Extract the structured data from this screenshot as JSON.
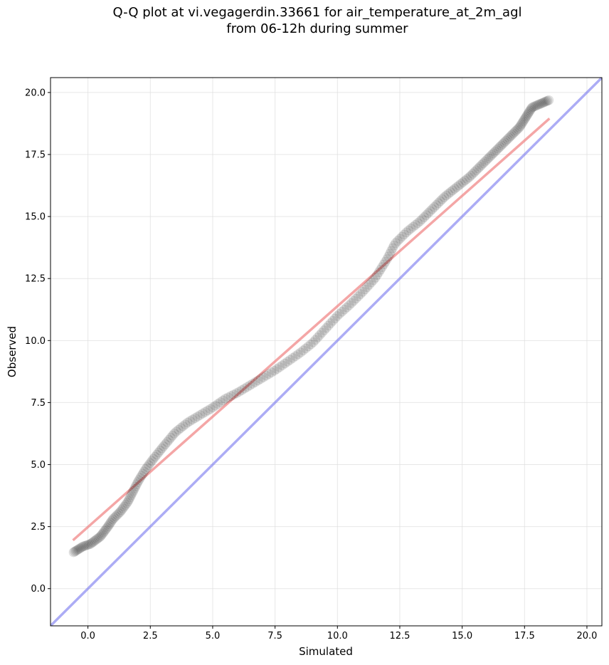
{
  "chart_data": {
    "type": "scatter",
    "title_line1": "Q-Q plot at vi.vegagerdin.33661 for air_temperature_at_2m_agl",
    "title_line2": "from 06-12h during summer",
    "xlabel": "Simulated",
    "ylabel": "Observed",
    "xlim": [
      -1.5,
      20.6
    ],
    "ylim": [
      -1.5,
      20.6
    ],
    "xticks": [
      "0.0",
      "2.5",
      "5.0",
      "7.5",
      "10.0",
      "12.5",
      "15.0",
      "17.5",
      "20.0"
    ],
    "yticks": [
      "0.0",
      "2.5",
      "5.0",
      "7.5",
      "10.0",
      "12.5",
      "15.0",
      "17.5",
      "20.0"
    ],
    "grid": true,
    "colors": {
      "points": "#000000",
      "fit_line": "#f08080",
      "identity_line": "#8080f0"
    },
    "fit_line": {
      "x": [
        -0.6,
        18.5
      ],
      "y": [
        1.95,
        18.95
      ]
    },
    "identity_line": {
      "x": [
        -1.5,
        20.6
      ],
      "y": [
        -1.5,
        20.6
      ]
    },
    "anchors": [
      [
        -0.6,
        1.45
      ],
      [
        -0.2,
        1.7
      ],
      [
        0.1,
        1.8
      ],
      [
        0.5,
        2.1
      ],
      [
        0.8,
        2.5
      ],
      [
        1.0,
        2.8
      ],
      [
        1.3,
        3.1
      ],
      [
        1.6,
        3.5
      ],
      [
        1.8,
        3.9
      ],
      [
        2.0,
        4.3
      ],
      [
        2.3,
        4.8
      ],
      [
        2.6,
        5.2
      ],
      [
        3.0,
        5.7
      ],
      [
        3.5,
        6.3
      ],
      [
        4.0,
        6.7
      ],
      [
        4.5,
        7.0
      ],
      [
        5.0,
        7.3
      ],
      [
        5.5,
        7.65
      ],
      [
        6.0,
        7.9
      ],
      [
        6.5,
        8.2
      ],
      [
        7.0,
        8.5
      ],
      [
        7.5,
        8.8
      ],
      [
        8.0,
        9.15
      ],
      [
        8.5,
        9.5
      ],
      [
        9.0,
        9.9
      ],
      [
        9.5,
        10.45
      ],
      [
        10.0,
        11.0
      ],
      [
        10.5,
        11.45
      ],
      [
        11.0,
        11.95
      ],
      [
        11.5,
        12.5
      ],
      [
        12.0,
        13.3
      ],
      [
        12.3,
        13.9
      ],
      [
        12.8,
        14.4
      ],
      [
        13.3,
        14.8
      ],
      [
        13.8,
        15.3
      ],
      [
        14.3,
        15.8
      ],
      [
        14.8,
        16.2
      ],
      [
        15.3,
        16.6
      ],
      [
        15.8,
        17.1
      ],
      [
        16.3,
        17.6
      ],
      [
        16.8,
        18.1
      ],
      [
        17.3,
        18.6
      ],
      [
        17.8,
        19.4
      ],
      [
        18.5,
        19.7
      ]
    ],
    "n_points": 260
  }
}
